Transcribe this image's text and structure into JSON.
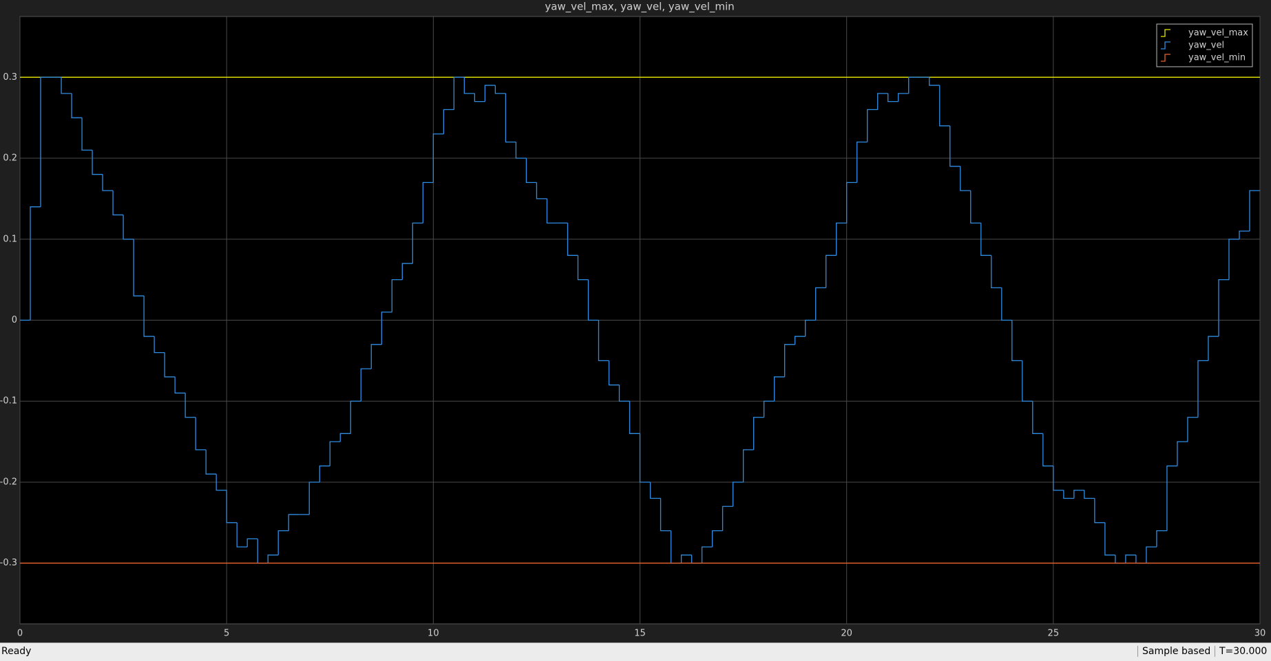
{
  "chart_data": {
    "type": "line",
    "step": true,
    "title": "yaw_vel_max, yaw_vel, yaw_vel_min",
    "xlim": [
      0,
      30
    ],
    "ylim": [
      -0.375,
      0.375
    ],
    "xticks": [
      0,
      5,
      10,
      15,
      20,
      25,
      30
    ],
    "yticks": [
      -0.3,
      -0.2,
      -0.1,
      0,
      0.1,
      0.2,
      0.3
    ],
    "grid": true,
    "legend": "top-right",
    "series": [
      {
        "name": "yaw_vel_max",
        "color": "#e8e800",
        "x": [
          0,
          30
        ],
        "values": [
          0.3,
          0.3
        ]
      },
      {
        "name": "yaw_vel",
        "color": "#2f8de4",
        "x": [
          0,
          0.25,
          0.5,
          0.75,
          1,
          1.25,
          1.5,
          1.75,
          2,
          2.25,
          2.5,
          2.75,
          3,
          3.25,
          3.5,
          3.75,
          4,
          4.25,
          4.5,
          4.75,
          5,
          5.25,
          5.5,
          5.75,
          6,
          6.25,
          6.5,
          6.75,
          7,
          7.25,
          7.5,
          7.75,
          8,
          8.25,
          8.5,
          8.75,
          9,
          9.25,
          9.5,
          9.75,
          10,
          10.25,
          10.5,
          10.75,
          11,
          11.25,
          11.5,
          11.75,
          12,
          12.25,
          12.5,
          12.75,
          13,
          13.25,
          13.5,
          13.75,
          14,
          14.25,
          14.5,
          14.75,
          15,
          15.25,
          15.5,
          15.75,
          16,
          16.25,
          16.5,
          16.75,
          17,
          17.25,
          17.5,
          17.75,
          18,
          18.25,
          18.5,
          18.75,
          19,
          19.25,
          19.5,
          19.75,
          20,
          20.25,
          20.5,
          20.75,
          21,
          21.25,
          21.5,
          21.75,
          22,
          22.25,
          22.5,
          22.75,
          23,
          23.25,
          23.5,
          23.75,
          24,
          24.25,
          24.5,
          24.75,
          25,
          25.25,
          25.5,
          25.75,
          26,
          26.25,
          26.5,
          26.75,
          27,
          27.25,
          27.5,
          27.75,
          28,
          28.25,
          28.5,
          28.75,
          29,
          29.25,
          29.5,
          29.75,
          30
        ],
        "values": [
          0,
          0.14,
          0.3,
          0.3,
          0.28,
          0.25,
          0.21,
          0.18,
          0.16,
          0.13,
          0.1,
          0.03,
          -0.02,
          -0.04,
          -0.07,
          -0.09,
          -0.12,
          -0.16,
          -0.19,
          -0.21,
          -0.25,
          -0.28,
          -0.27,
          -0.3,
          -0.29,
          -0.26,
          -0.24,
          -0.24,
          -0.2,
          -0.18,
          -0.15,
          -0.14,
          -0.1,
          -0.06,
          -0.03,
          0.01,
          0.05,
          0.07,
          0.12,
          0.17,
          0.23,
          0.26,
          0.3,
          0.28,
          0.27,
          0.29,
          0.28,
          0.22,
          0.2,
          0.17,
          0.15,
          0.12,
          0.12,
          0.08,
          0.05,
          0,
          -0.05,
          -0.08,
          -0.1,
          -0.14,
          -0.2,
          -0.22,
          -0.26,
          -0.3,
          -0.29,
          -0.3,
          -0.28,
          -0.26,
          -0.23,
          -0.2,
          -0.16,
          -0.12,
          -0.1,
          -0.07,
          -0.03,
          -0.02,
          0,
          0.04,
          0.08,
          0.12,
          0.17,
          0.22,
          0.26,
          0.28,
          0.27,
          0.28,
          0.3,
          0.3,
          0.29,
          0.24,
          0.19,
          0.16,
          0.12,
          0.08,
          0.04,
          0,
          -0.05,
          -0.1,
          -0.14,
          -0.18,
          -0.21,
          -0.22,
          -0.21,
          -0.22,
          -0.25,
          -0.29,
          -0.3,
          -0.29,
          -0.3,
          -0.28,
          -0.26,
          -0.18,
          -0.15,
          -0.12,
          -0.05,
          -0.02,
          0.05,
          0.1,
          0.11,
          0.16,
          0.16
        ]
      },
      {
        "name": "yaw_vel_min",
        "color": "#e8622c",
        "x": [
          0,
          30
        ],
        "values": [
          -0.3,
          -0.3
        ]
      }
    ]
  },
  "status_bar": {
    "left": "Ready",
    "mode": "Sample based",
    "time": "T=30.000"
  }
}
